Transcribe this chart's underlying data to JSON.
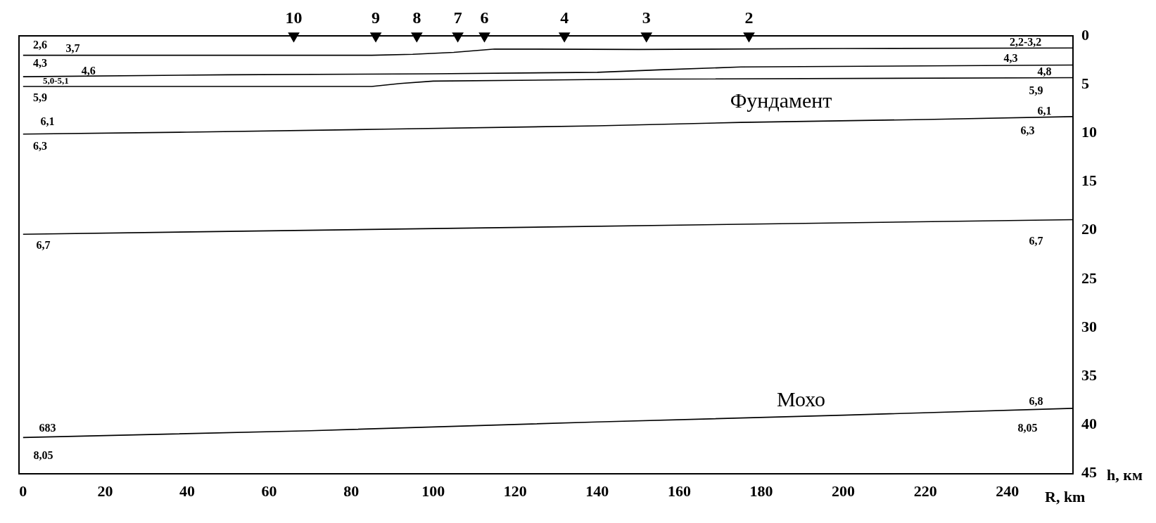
{
  "chart_data": {
    "type": "line",
    "xlabel": "R, km",
    "ylabel": "h, км",
    "xlim": [
      -1,
      256
    ],
    "xticks": [
      0,
      20,
      40,
      60,
      80,
      100,
      120,
      140,
      160,
      180,
      200,
      220,
      240
    ],
    "ylim": [
      45,
      0
    ],
    "yticks": [
      0,
      5,
      10,
      15,
      20,
      25,
      30,
      35,
      40,
      45
    ],
    "grid": false,
    "legend": false,
    "line_style": "solid",
    "series": [
      {
        "marker": "none",
        "color": "#000000",
        "x": [
          0,
          85,
          95,
          105,
          115,
          150,
          200,
          256
        ],
        "values": [
          2.0,
          2.0,
          1.9,
          1.7,
          1.35,
          1.4,
          1.3,
          1.25
        ]
      },
      {
        "marker": "none",
        "color": "#000000",
        "x": [
          0,
          50,
          100,
          140,
          155,
          175,
          256
        ],
        "values": [
          4.2,
          4.0,
          3.9,
          3.75,
          3.5,
          3.2,
          3.0
        ]
      },
      {
        "marker": "none",
        "color": "#000000",
        "x": [
          0,
          85,
          92,
          100,
          150,
          256
        ],
        "values": [
          5.2,
          5.2,
          4.9,
          4.65,
          4.45,
          4.3
        ]
      },
      {
        "marker": "none",
        "color": "#000000",
        "x": [
          0,
          40,
          88,
          140,
          175,
          220,
          256
        ],
        "values": [
          10.1,
          9.9,
          9.6,
          9.25,
          8.9,
          8.6,
          8.3
        ]
      },
      {
        "marker": "none",
        "color": "#000000",
        "x": [
          0,
          256
        ],
        "values": [
          20.4,
          18.9
        ]
      },
      {
        "marker": "none",
        "color": "#000000",
        "x": [
          0,
          70,
          140,
          200,
          256
        ],
        "values": [
          41.3,
          40.6,
          39.7,
          39.0,
          38.3
        ]
      },
      {
        "type": "scatter",
        "marker": "triangle",
        "color": "#000000",
        "x": [
          66,
          86,
          96,
          106,
          112.5,
          132,
          152,
          177
        ],
        "values": [
          0,
          0,
          0,
          0,
          0,
          0,
          0,
          0
        ]
      }
    ],
    "annotations": [
      {
        "text": "10",
        "x": 66,
        "y": 0
      },
      {
        "text": "9",
        "x": 86,
        "y": 0
      },
      {
        "text": "8",
        "x": 96,
        "y": 0
      },
      {
        "text": "7",
        "x": 106,
        "y": 0
      },
      {
        "text": "6",
        "x": 112.5,
        "y": 0
      },
      {
        "text": "4",
        "x": 132,
        "y": 0
      },
      {
        "text": "3",
        "x": 152,
        "y": 0
      },
      {
        "text": "2",
        "x": 177,
        "y": 0
      },
      "2,6",
      "3,7",
      "4,3",
      "4,6",
      "5,0-5,1",
      "5,9",
      "6,1",
      "6,3",
      "6,7",
      "683",
      "8,05",
      "2,2-3,2",
      "4,3",
      "4,8",
      "5,9",
      "6,1",
      "6,3",
      "6,7",
      "6,8",
      "8,05",
      "Фундамент",
      "Мохо"
    ]
  }
}
